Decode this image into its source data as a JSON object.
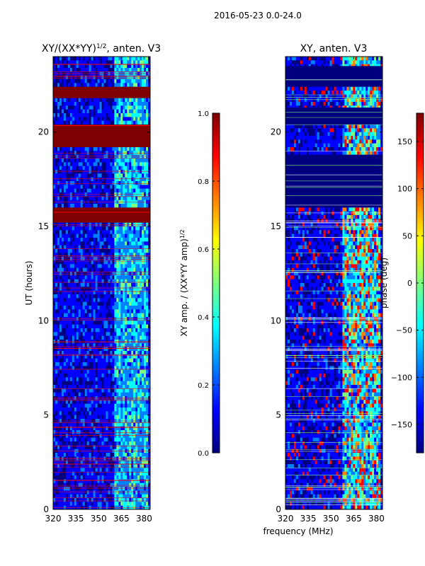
{
  "suptitle": "2016-05-23 0.0-24.0",
  "colors": {
    "jet": [
      "#00007f",
      "#0000ff",
      "#007fff",
      "#00ffff",
      "#7fff7f",
      "#ffff00",
      "#ff7f00",
      "#ff0000",
      "#7f0000"
    ],
    "frame": "#000000"
  },
  "chart_data": [
    {
      "type": "heatmap",
      "title_main": "XY/(XX*YY)",
      "title_sup": "1/2",
      "title_rest": ", anten. V3",
      "xlabel": "",
      "ylabel": "UT (hours)",
      "xlim": [
        320,
        384
      ],
      "ylim": [
        0,
        24
      ],
      "xticks": [
        320,
        335,
        350,
        365,
        380
      ],
      "yticks": [
        0,
        5,
        10,
        15,
        20
      ],
      "colorbar": {
        "label_main": "XY amp. / (XX*YY amp)",
        "label_sup": "1/2",
        "range": [
          0.0,
          1.0
        ],
        "ticks": [
          "0.0",
          "0.2",
          "0.4",
          "0.6",
          "0.8",
          "1.0"
        ],
        "tick_values": [
          0.0,
          0.2,
          0.4,
          0.6,
          0.8,
          1.0
        ]
      },
      "saturated_bands_hours": [
        [
          21.8,
          22.4
        ],
        [
          19.2,
          20.4
        ],
        [
          15.2,
          16.0
        ]
      ],
      "active_band_mhz": [
        361,
        383
      ]
    },
    {
      "type": "heatmap",
      "title_main": "XY, anten. V3",
      "title_sup": "",
      "title_rest": "",
      "xlabel": "frequency (MHz)",
      "ylabel": "",
      "xlim": [
        320,
        384
      ],
      "ylim": [
        0,
        24
      ],
      "xticks": [
        320,
        335,
        350,
        365,
        380
      ],
      "yticks": [
        0,
        5,
        10,
        15,
        20
      ],
      "colorbar": {
        "label_main": "phase (deg)",
        "label_sup": "",
        "range": [
          -180,
          180
        ],
        "ticks": [
          "−150",
          "−100",
          "−50",
          "0",
          "50",
          "100",
          "150"
        ],
        "tick_values": [
          -150,
          -100,
          -50,
          0,
          50,
          100,
          150
        ]
      },
      "low_bands_hours": [
        [
          22.4,
          23.5
        ],
        [
          20.4,
          21.3
        ],
        [
          16.0,
          18.8
        ]
      ],
      "active_band_mhz": [
        358,
        383
      ]
    }
  ]
}
